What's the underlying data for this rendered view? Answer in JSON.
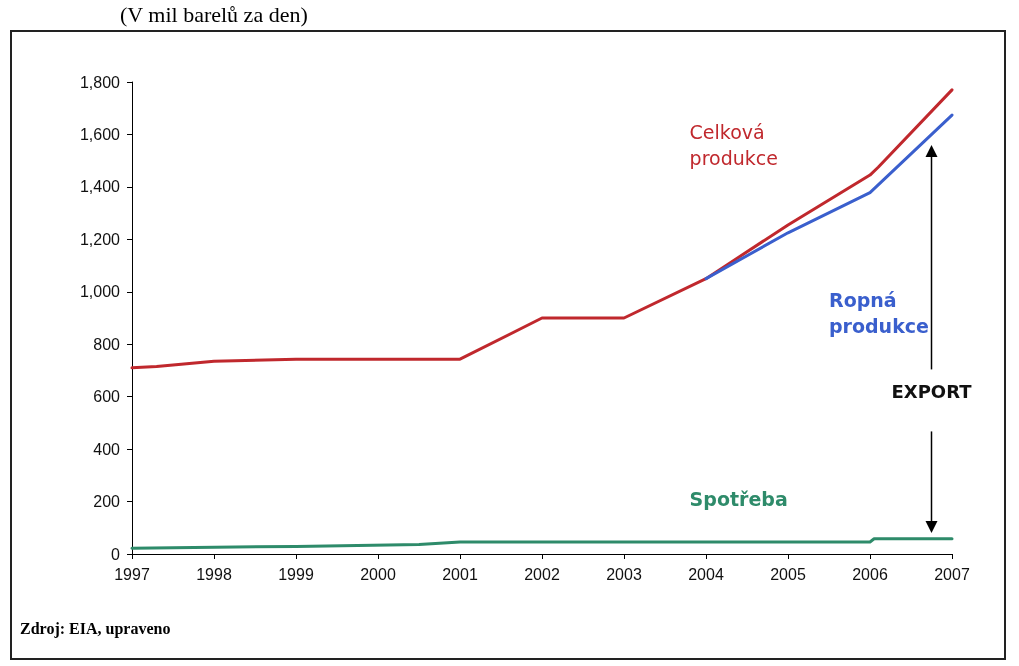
{
  "chart_data": {
    "type": "line",
    "title": "(V mil barelů za den)",
    "xlim": [
      1997,
      2007
    ],
    "xticks": [
      1997,
      1998,
      1999,
      2000,
      2001,
      2002,
      2003,
      2004,
      2005,
      2006,
      2007
    ],
    "ylim": [
      0,
      1800
    ],
    "yticks": [
      0,
      200,
      400,
      600,
      800,
      {
        "value": 1000,
        "label": "1,000"
      },
      {
        "value": 1200,
        "label": "1,200"
      },
      {
        "value": 1400,
        "label": "1,400"
      },
      {
        "value": 1600,
        "label": "1,600"
      },
      {
        "value": 1800,
        "label": "1,800"
      }
    ],
    "grid": false,
    "legend": false,
    "marker": "none",
    "line_style": "solid",
    "series": [
      {
        "name": "Celková produkce",
        "color": "#c0282d",
        "x": [
          1997,
          1997.3,
          1998,
          1999,
          2001,
          2002,
          2003,
          2004,
          2005,
          2006,
          2006.1,
          2007
        ],
        "values": [
          710,
          715,
          735,
          743,
          743,
          900,
          900,
          1050,
          1255,
          1445,
          1475,
          1770
        ]
      },
      {
        "name": "Ropná produkce",
        "color": "#3a5fcd",
        "x": [
          2004,
          2005,
          2006,
          2007
        ],
        "values": [
          1050,
          1225,
          1378,
          1674
        ]
      },
      {
        "name": "Spotřeba",
        "color": "#2e8b6a",
        "x": [
          1997,
          1999,
          2000.5,
          2001,
          2006,
          2006.05,
          2007
        ],
        "values": [
          22,
          29,
          36,
          46,
          46,
          58,
          58
        ]
      }
    ],
    "annotations": [
      "EXPORT",
      "Zdroj: EIA, upraveno"
    ]
  }
}
